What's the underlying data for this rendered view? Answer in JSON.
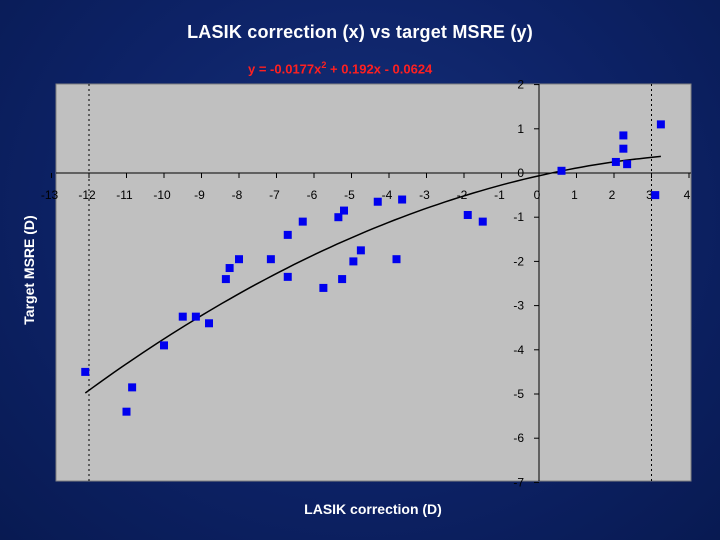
{
  "chart_data": {
    "type": "scatter",
    "title": "LASIK correction (x) vs target MSRE (y)",
    "equation": {
      "prefix": "y = -0.0177x",
      "exponent": "2",
      "suffix": " + 0.192x - 0.0624"
    },
    "xlabel": "LASIK correction (D)",
    "ylabel": "Target MSRE (D)",
    "xlim": [
      -13,
      4
    ],
    "ylim": [
      -7,
      2
    ],
    "x_ticks": [
      -13,
      -12,
      -11,
      -10,
      -9,
      -8,
      -7,
      -6,
      -5,
      -4,
      -3,
      -2,
      -1,
      0,
      1,
      2,
      3,
      4
    ],
    "y_ticks": [
      2,
      1,
      0,
      -1,
      -2,
      -3,
      -4,
      -5,
      -6,
      -7
    ],
    "grid": false,
    "points": [
      {
        "x": -12.1,
        "y": -4.5
      },
      {
        "x": -11,
        "y": -5.4
      },
      {
        "x": -10.85,
        "y": -4.85
      },
      {
        "x": -10,
        "y": -3.9
      },
      {
        "x": -9.5,
        "y": -3.25
      },
      {
        "x": -9.15,
        "y": -3.25
      },
      {
        "x": -8.8,
        "y": -3.4
      },
      {
        "x": -8.35,
        "y": -2.4
      },
      {
        "x": -8.25,
        "y": -2.15
      },
      {
        "x": -8,
        "y": -1.95
      },
      {
        "x": -7.15,
        "y": -1.95
      },
      {
        "x": -6.7,
        "y": -2.35
      },
      {
        "x": -6.7,
        "y": -1.4
      },
      {
        "x": -6.3,
        "y": -1.1
      },
      {
        "x": -5.75,
        "y": -2.6
      },
      {
        "x": -5.35,
        "y": -1.0
      },
      {
        "x": -5.25,
        "y": -2.4
      },
      {
        "x": -5.2,
        "y": -0.85
      },
      {
        "x": -4.95,
        "y": -2.0
      },
      {
        "x": -4.75,
        "y": -1.75
      },
      {
        "x": -4.3,
        "y": -0.65
      },
      {
        "x": -3.8,
        "y": -1.95
      },
      {
        "x": -3.65,
        "y": -0.6
      },
      {
        "x": -1.9,
        "y": -0.95
      },
      {
        "x": -1.5,
        "y": -1.1
      },
      {
        "x": 0.6,
        "y": 0.05
      },
      {
        "x": 2.05,
        "y": 0.25
      },
      {
        "x": 2.25,
        "y": 0.85
      },
      {
        "x": 2.25,
        "y": 0.55
      },
      {
        "x": 2.35,
        "y": 0.2
      },
      {
        "x": 3.1,
        "y": -0.5
      },
      {
        "x": 3.25,
        "y": 1.1
      }
    ],
    "trendline": {
      "type": "polynomial",
      "coefficients": [
        -0.0177,
        0.192,
        -0.0624
      ],
      "x_range": [
        -12.1,
        3.25
      ]
    },
    "colors": {
      "points": "#0000ee",
      "trendline": "#000000",
      "plot_area": "#c0c0c0",
      "equation": "#ff2020",
      "labels": "#ffffff",
      "background": "#0d2266"
    }
  }
}
